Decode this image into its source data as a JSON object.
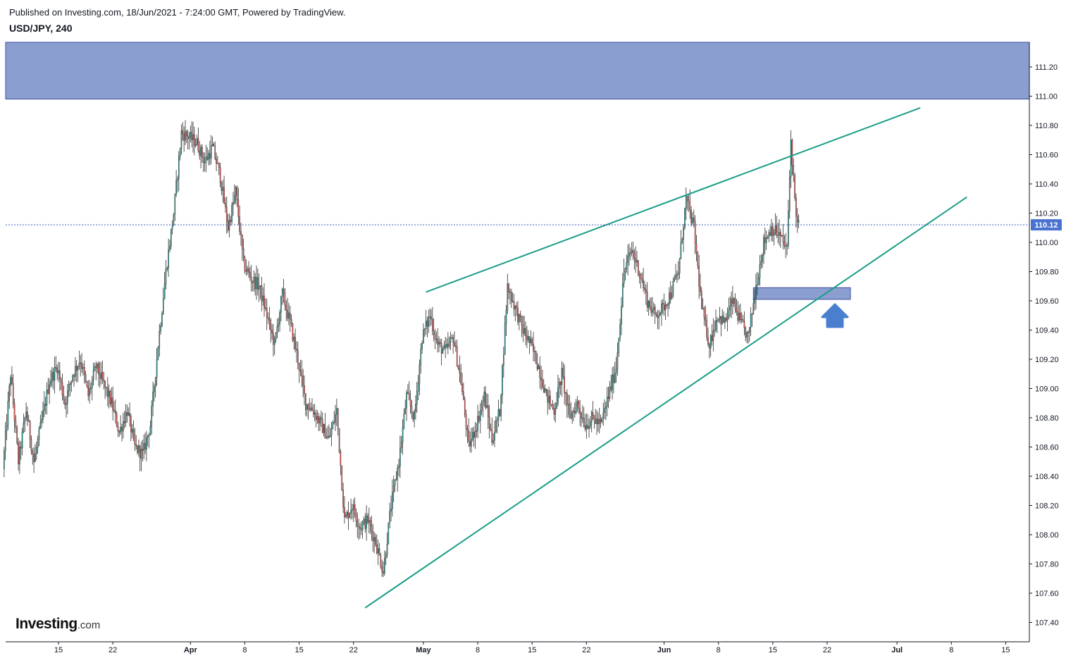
{
  "header": {
    "published": "Published on Investing.com, 18/Jun/2021 - 7:24:00 GMT, Powered by TradingView.",
    "symbol": "USD/JPY, 240"
  },
  "logo": {
    "main": "Investing",
    "sub": ".com"
  },
  "chart_data": {
    "type": "candlestick",
    "symbol": "USD/JPY",
    "timeframe": "240",
    "ylim": [
      107.3,
      111.37
    ],
    "y_ticks": [
      "111.20",
      "111.00",
      "110.80",
      "110.60",
      "110.40",
      "110.20",
      "110.00",
      "109.80",
      "109.60",
      "109.40",
      "109.20",
      "109.00",
      "108.80",
      "108.60",
      "108.40",
      "108.20",
      "108.00",
      "107.80",
      "107.60",
      "107.40"
    ],
    "x_tick_labels": [
      "15",
      "22",
      "Apr",
      "8",
      "15",
      "22",
      "May",
      "8",
      "15",
      "22",
      "Jun",
      "8",
      "15",
      "22",
      "Jul",
      "8",
      "15"
    ],
    "x_tick_dates": [
      "2021-03-15",
      "2021-03-22",
      "2021-04-01",
      "2021-04-08",
      "2021-04-15",
      "2021-04-22",
      "2021-05-01",
      "2021-05-08",
      "2021-05-15",
      "2021-05-22",
      "2021-06-01",
      "2021-06-08",
      "2021-06-15",
      "2021-06-22",
      "2021-07-01",
      "2021-07-08",
      "2021-07-15"
    ],
    "last_price": "110.12",
    "price_path": [
      [
        "2021-03-08T00:00",
        108.45
      ],
      [
        "2021-03-09T00:00",
        109.1
      ],
      [
        "2021-03-10T00:00",
        108.5
      ],
      [
        "2021-03-11T00:00",
        108.85
      ],
      [
        "2021-03-12T00:00",
        108.5
      ],
      [
        "2021-03-14T00:00",
        109.05
      ],
      [
        "2021-03-15T00:00",
        109.15
      ],
      [
        "2021-03-16T00:00",
        108.9
      ],
      [
        "2021-03-17T00:00",
        109.1
      ],
      [
        "2021-03-18T00:00",
        109.2
      ],
      [
        "2021-03-19T00:00",
        108.95
      ],
      [
        "2021-03-20T00:00",
        109.15
      ],
      [
        "2021-03-22T00:00",
        108.9
      ],
      [
        "2021-03-23T00:00",
        108.7
      ],
      [
        "2021-03-24T00:00",
        108.85
      ],
      [
        "2021-03-25T00:00",
        108.6
      ],
      [
        "2021-03-26T00:00",
        108.55
      ],
      [
        "2021-03-27T00:00",
        108.75
      ],
      [
        "2021-03-28T00:00",
        109.3
      ],
      [
        "2021-03-29T00:00",
        109.8
      ],
      [
        "2021-03-30T00:00",
        110.2
      ],
      [
        "2021-03-31T00:00",
        110.75
      ],
      [
        "2021-04-01T00:00",
        110.72
      ],
      [
        "2021-04-02T00:00",
        110.68
      ],
      [
        "2021-04-03T00:00",
        110.55
      ],
      [
        "2021-04-04T00:00",
        110.65
      ],
      [
        "2021-04-05T00:00",
        110.45
      ],
      [
        "2021-04-06T00:00",
        110.1
      ],
      [
        "2021-04-07T00:00",
        110.35
      ],
      [
        "2021-04-08T00:00",
        109.85
      ],
      [
        "2021-04-09T00:00",
        109.75
      ],
      [
        "2021-04-10T00:00",
        109.7
      ],
      [
        "2021-04-11T00:00",
        109.5
      ],
      [
        "2021-04-12T00:00",
        109.3
      ],
      [
        "2021-04-13T00:00",
        109.65
      ],
      [
        "2021-04-14T00:00",
        109.45
      ],
      [
        "2021-04-15T00:00",
        109.2
      ],
      [
        "2021-04-16T00:00",
        108.9
      ],
      [
        "2021-04-17T00:00",
        108.85
      ],
      [
        "2021-04-18T00:00",
        108.75
      ],
      [
        "2021-04-19T00:00",
        108.65
      ],
      [
        "2021-04-20T00:00",
        108.85
      ],
      [
        "2021-04-21T00:00",
        108.1
      ],
      [
        "2021-04-22T00:00",
        108.2
      ],
      [
        "2021-04-23T00:00",
        108.05
      ],
      [
        "2021-04-24T00:00",
        108.1
      ],
      [
        "2021-04-25T00:00",
        107.95
      ],
      [
        "2021-04-26T00:00",
        107.75
      ],
      [
        "2021-04-27T00:00",
        108.2
      ],
      [
        "2021-04-28T00:00",
        108.5
      ],
      [
        "2021-04-29T00:00",
        108.95
      ],
      [
        "2021-04-30T00:00",
        108.8
      ],
      [
        "2021-05-01T00:00",
        109.35
      ],
      [
        "2021-05-02T00:00",
        109.5
      ],
      [
        "2021-05-03T00:00",
        109.3
      ],
      [
        "2021-05-04T00:00",
        109.25
      ],
      [
        "2021-05-05T00:00",
        109.35
      ],
      [
        "2021-05-06T00:00",
        109.05
      ],
      [
        "2021-05-07T00:00",
        108.6
      ],
      [
        "2021-05-08T00:00",
        108.75
      ],
      [
        "2021-05-09T00:00",
        108.95
      ],
      [
        "2021-05-10T00:00",
        108.65
      ],
      [
        "2021-05-11T00:00",
        108.85
      ],
      [
        "2021-05-12T00:00",
        109.7
      ],
      [
        "2021-05-13T00:00",
        109.55
      ],
      [
        "2021-05-14T00:00",
        109.4
      ],
      [
        "2021-05-15T00:00",
        109.3
      ],
      [
        "2021-05-16T00:00",
        109.15
      ],
      [
        "2021-05-17T00:00",
        108.95
      ],
      [
        "2021-05-18T00:00",
        108.85
      ],
      [
        "2021-05-19T00:00",
        109.1
      ],
      [
        "2021-05-20T00:00",
        108.8
      ],
      [
        "2021-05-21T00:00",
        108.9
      ],
      [
        "2021-05-22T00:00",
        108.75
      ],
      [
        "2021-05-23T00:00",
        108.8
      ],
      [
        "2021-05-24T00:00",
        108.75
      ],
      [
        "2021-05-25T00:00",
        108.95
      ],
      [
        "2021-05-26T00:00",
        109.15
      ],
      [
        "2021-05-27T00:00",
        109.8
      ],
      [
        "2021-05-28T00:00",
        109.95
      ],
      [
        "2021-05-29T00:00",
        109.8
      ],
      [
        "2021-05-30T00:00",
        109.6
      ],
      [
        "2021-05-31T00:00",
        109.5
      ],
      [
        "2021-06-01T00:00",
        109.55
      ],
      [
        "2021-06-02T00:00",
        109.65
      ],
      [
        "2021-06-03T00:00",
        109.8
      ],
      [
        "2021-06-04T00:00",
        110.3
      ],
      [
        "2021-06-05T00:00",
        110.1
      ],
      [
        "2021-06-06T00:00",
        109.55
      ],
      [
        "2021-06-07T00:00",
        109.3
      ],
      [
        "2021-06-08T00:00",
        109.5
      ],
      [
        "2021-06-09T00:00",
        109.45
      ],
      [
        "2021-06-10T00:00",
        109.6
      ],
      [
        "2021-06-11T00:00",
        109.45
      ],
      [
        "2021-06-12T00:00",
        109.35
      ],
      [
        "2021-06-13T00:00",
        109.7
      ],
      [
        "2021-06-14T00:00",
        110.0
      ],
      [
        "2021-06-15T00:00",
        110.1
      ],
      [
        "2021-06-16T00:00",
        110.05
      ],
      [
        "2021-06-17T00:00",
        109.95
      ],
      [
        "2021-06-17T12:00",
        110.7
      ],
      [
        "2021-06-18T00:00",
        110.3
      ],
      [
        "2021-06-18T08:00",
        110.12
      ]
    ],
    "resistance_zone": {
      "from": 110.98,
      "to": 111.37
    },
    "support_zone": {
      "start": "2021-06-12T12:00",
      "end": "2021-06-25",
      "from": 109.61,
      "to": 109.69
    },
    "upper_trendline": [
      [
        "2021-05-01T08:00",
        109.66
      ],
      [
        "2021-07-04",
        110.92
      ]
    ],
    "lower_trendline": [
      [
        "2021-04-23T12:00",
        107.5
      ],
      [
        "2021-07-10",
        110.31
      ]
    ],
    "arrow": {
      "date": "2021-06-23",
      "direction": "up"
    },
    "colors": {
      "up": "#26a69a",
      "down": "#ef5350",
      "trend": "#1a9e87",
      "zone_fill": "#8a9ed0",
      "zone_border": "#3d4f9f",
      "arrow": "#4a7fcf",
      "last_price_bg": "#4a72d0",
      "axis": "#131722",
      "grid": "#e8e8e8"
    }
  }
}
